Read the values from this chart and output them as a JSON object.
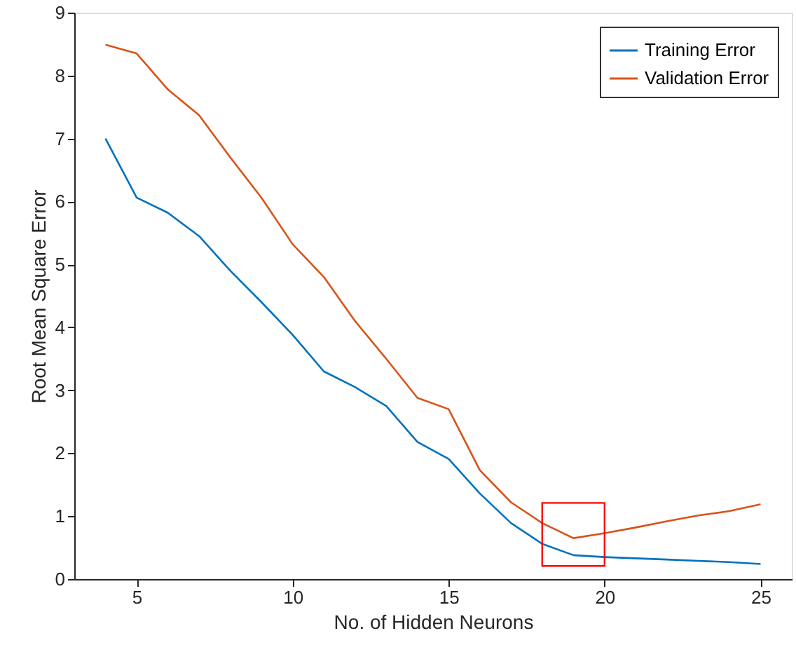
{
  "chart_data": {
    "type": "line",
    "xlabel": "No. of Hidden Neurons",
    "ylabel": "Root Mean Square Error",
    "x": [
      4,
      5,
      6,
      7,
      8,
      9,
      10,
      11,
      12,
      13,
      14,
      15,
      16,
      17,
      18,
      19,
      20,
      21,
      22,
      23,
      24,
      25
    ],
    "series": [
      {
        "name": "Training Error",
        "color": "#0072bd",
        "values": [
          7.0,
          6.06,
          5.82,
          5.45,
          4.9,
          4.4,
          3.88,
          3.3,
          3.05,
          2.75,
          2.18,
          1.91,
          1.36,
          0.89,
          0.56,
          0.38,
          0.35,
          0.33,
          0.31,
          0.29,
          0.27,
          0.24
        ]
      },
      {
        "name": "Validation Error",
        "color": "#d95319",
        "values": [
          8.49,
          8.35,
          7.78,
          7.37,
          6.7,
          6.06,
          5.32,
          4.8,
          4.1,
          3.5,
          2.88,
          2.7,
          1.73,
          1.22,
          0.89,
          0.65,
          0.73,
          0.82,
          0.92,
          1.01,
          1.08,
          1.19
        ]
      }
    ],
    "xlim": [
      3,
      26
    ],
    "xticks": [
      5,
      10,
      15,
      20,
      25
    ],
    "ylim": [
      0,
      9
    ],
    "yticks": [
      0,
      1,
      2,
      3,
      4,
      5,
      6,
      7,
      8,
      9
    ],
    "grid": false,
    "legend": "top right",
    "marker": "none",
    "line_style": "solid"
  }
}
